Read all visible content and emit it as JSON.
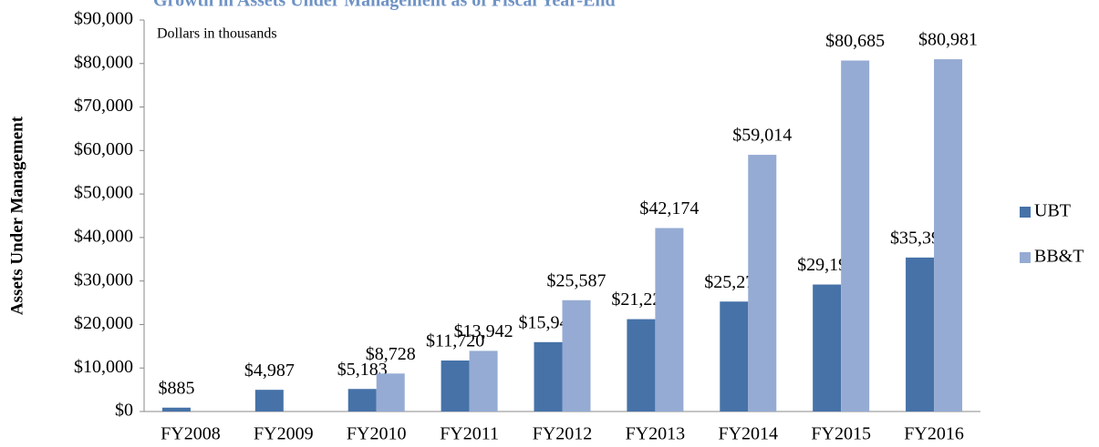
{
  "chart_data": {
    "type": "bar",
    "title": "Growth in Assets Under Management as of Fiscal Year-End",
    "annotation": "Dollars in thousands",
    "y_label": "Assets Under Management",
    "categories": [
      "FY2008",
      "FY2009",
      "FY2010",
      "FY2011",
      "FY2012",
      "FY2013",
      "FY2014",
      "FY2015",
      "FY2016"
    ],
    "series": [
      {
        "name": "UBT",
        "color": "#4672a8",
        "values": [
          885,
          4987,
          5183,
          11720,
          15945,
          21229,
          25276,
          29191,
          35394
        ],
        "value_labels": [
          "$885",
          "$4,987",
          "$5,183",
          "$11,720",
          "$15,945",
          "$21,229",
          "$25,276",
          "$29,191",
          "$35,394"
        ]
      },
      {
        "name": "BB&T",
        "color": "#95abd3",
        "values": [
          null,
          null,
          8728,
          13942,
          25587,
          42174,
          59014,
          80685,
          80981
        ],
        "value_labels": [
          null,
          null,
          "$8,728",
          "$13,942",
          "$25,587",
          "$42,174",
          "$59,014",
          "$80,685",
          "$80,981"
        ]
      }
    ],
    "ylim": [
      0,
      90000
    ],
    "yticks": [
      {
        "value": 0,
        "label": "$0"
      },
      {
        "value": 10000,
        "label": "$10,000"
      },
      {
        "value": 20000,
        "label": "$20,000"
      },
      {
        "value": 30000,
        "label": "$30,000"
      },
      {
        "value": 40000,
        "label": "$40,000"
      },
      {
        "value": 50000,
        "label": "$50,000"
      },
      {
        "value": 60000,
        "label": "$60,000"
      },
      {
        "value": 70000,
        "label": "$70,000"
      },
      {
        "value": 80000,
        "label": "$80,000"
      },
      {
        "value": 90000,
        "label": "$90,000"
      }
    ],
    "legend": "right"
  }
}
